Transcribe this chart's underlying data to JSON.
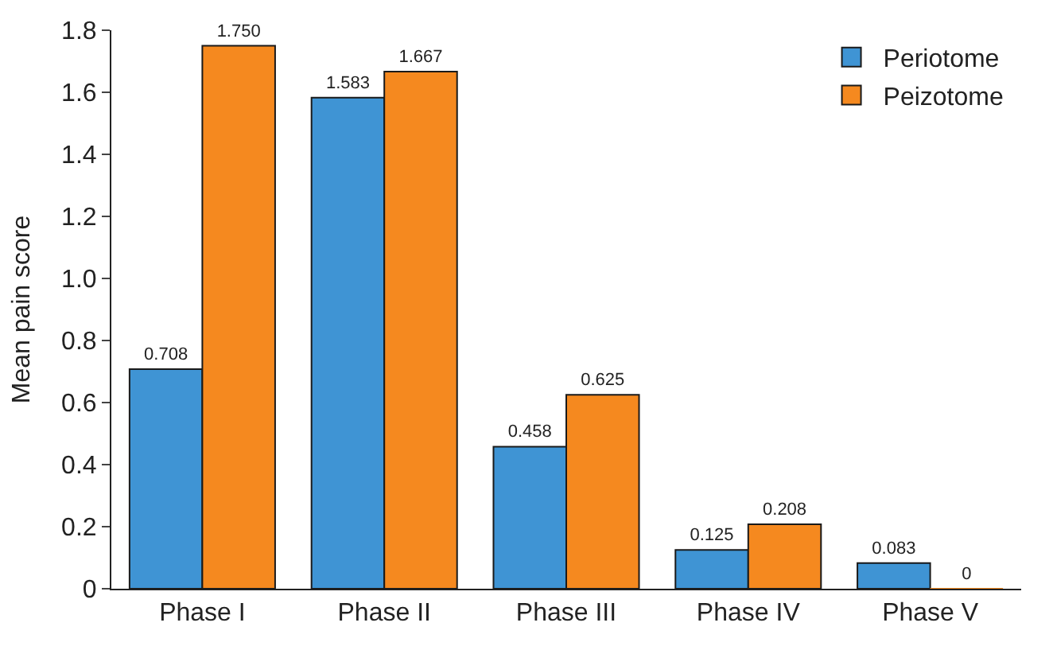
{
  "chart_data": {
    "type": "bar",
    "ylabel": "Mean pain score",
    "categories": [
      "Phase I",
      "Phase II",
      "Phase III",
      "Phase IV",
      "Phase V"
    ],
    "series": [
      {
        "name": "Periotome",
        "color": "#3f94d4",
        "values": [
          0.708,
          1.583,
          0.458,
          0.125,
          0.083
        ],
        "value_labels": [
          "0.708",
          "1.583",
          "0.458",
          "0.125",
          "0.083"
        ]
      },
      {
        "name": "Peizotome",
        "color": "#f5891f",
        "values": [
          1.75,
          1.667,
          0.625,
          0.208,
          0
        ],
        "value_labels": [
          "1.750",
          "1.667",
          "0.625",
          "0.208",
          "0"
        ]
      }
    ],
    "ylim": [
      0,
      1.8
    ],
    "yticks": [
      0,
      {
        "value": 0.2,
        "label": "0.2"
      },
      {
        "value": 0.4,
        "label": "0.4"
      },
      {
        "value": 0.6,
        "label": "0.6"
      },
      {
        "value": 0.8,
        "label": "0.8"
      },
      {
        "value": 1,
        "label": "1.0"
      },
      {
        "value": 1.2,
        "label": "1.2"
      },
      {
        "value": 1.4,
        "label": "1.4"
      },
      {
        "value": 1.6,
        "label": "1.6"
      },
      {
        "value": 1.8,
        "label": "1.8"
      }
    ],
    "legend": "top right"
  }
}
